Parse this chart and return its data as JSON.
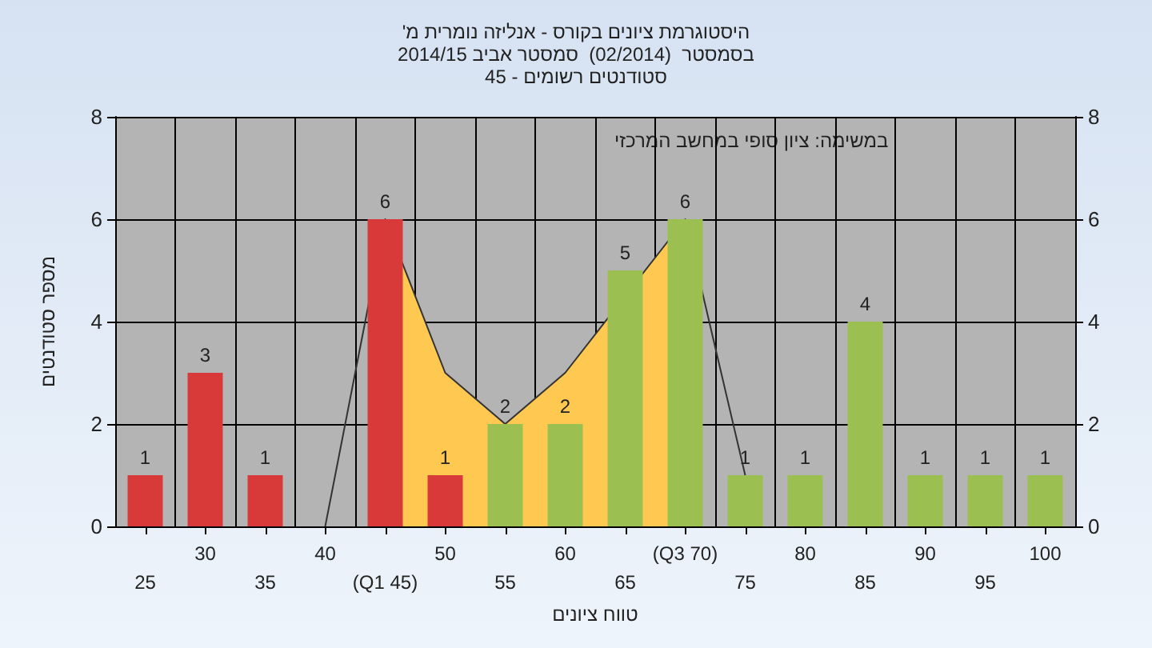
{
  "chart_data": {
    "type": "bar",
    "title": "'היסטוגרמת ציונים בקורס - אנליזה נומרית מ\nבסמסטר  (02/2014)  סמסטר אביב 2014/15\nסטודנטים רשומים - 45",
    "xlabel": "טווח ציונים",
    "ylabel": "מספר סטודנטים",
    "annotations": [
      "במשימה: ציון סופי במחשב המרכזי"
    ],
    "categories": [
      "25",
      "30",
      "35",
      "40",
      "(Q1 45)",
      "50",
      "55",
      "60",
      "65",
      "(Q3 70)",
      "75",
      "80",
      "85",
      "90",
      "95",
      "100"
    ],
    "series": [
      {
        "type": "area",
        "color": "#ffc850",
        "x": [
          "(Q1 45)",
          "50",
          "55",
          "60",
          "(Q3 70)"
        ],
        "values": [
          6,
          3,
          2,
          3,
          6
        ]
      },
      {
        "type": "line",
        "color": "#333333",
        "x": [
          "40",
          "(Q1 45)",
          "50",
          "55",
          "60",
          "(Q3 70)",
          "75"
        ],
        "values": [
          0,
          6,
          3,
          2,
          3,
          6,
          1
        ]
      },
      {
        "values": [
          1,
          3,
          1,
          null,
          6,
          1,
          2,
          2,
          5,
          6,
          1,
          1,
          4,
          1,
          1,
          1
        ],
        "value_labels": [
          "1",
          "3",
          "1",
          null,
          "6",
          "1",
          "2",
          "2",
          "5",
          "6",
          "1",
          "1",
          "4",
          "1",
          "1",
          "1"
        ],
        "colors": [
          "#d83a3a",
          "#d83a3a",
          "#d83a3a",
          "#d83a3a",
          "#d83a3a",
          "#d83a3a",
          "#9bbf50",
          "#9bbf50",
          "#9bbf50",
          "#9bbf50",
          "#9bbf50",
          "#9bbf50",
          "#9bbf50",
          "#9bbf50",
          "#9bbf50",
          "#9bbf50"
        ]
      }
    ],
    "ylim": [
      0,
      8
    ],
    "yticks": [
      0,
      2,
      4,
      6,
      8
    ],
    "y2lim": [
      0,
      8
    ],
    "y2ticks": [
      0,
      2,
      4,
      6,
      8
    ],
    "grid": true
  }
}
